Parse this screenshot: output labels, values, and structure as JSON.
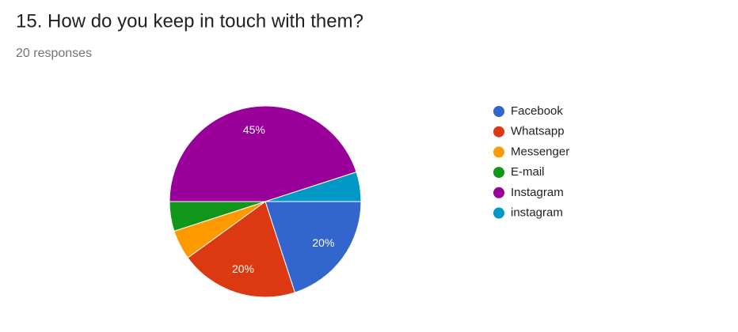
{
  "title": "15. How do you keep in touch with them?",
  "subtitle": "20 responses",
  "chart_data": {
    "type": "pie",
    "categories": [
      "Facebook",
      "Whatsapp",
      "Messenger",
      "E-mail",
      "Instagram",
      "instagram"
    ],
    "values": [
      20,
      20,
      5,
      5,
      45,
      5
    ],
    "value_labels": [
      "20%",
      "20%",
      null,
      null,
      "45%",
      null
    ],
    "colors": [
      "#3366cc",
      "#dc3912",
      "#ff9900",
      "#109618",
      "#990099",
      "#0099c6"
    ],
    "legend": "right"
  }
}
